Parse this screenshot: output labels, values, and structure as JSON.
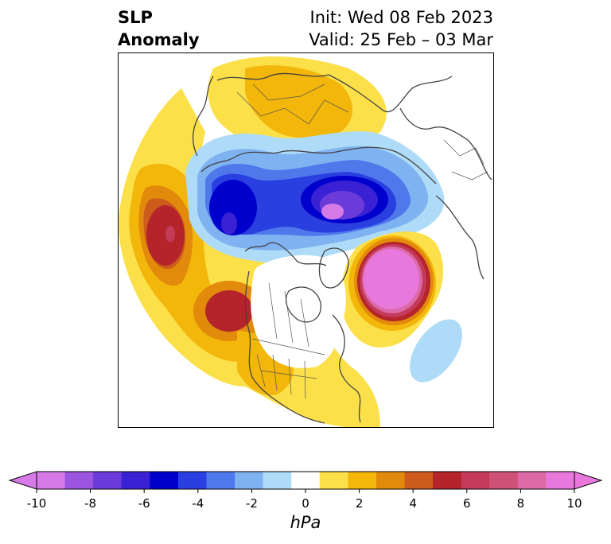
{
  "title": {
    "left_line1": "SLP",
    "left_line2": "Anomaly",
    "right_line1": "Init: Wed 08 Feb 2023",
    "right_line2": "Valid: 25 Feb – 03 Mar"
  },
  "colorbar": {
    "unit": "hPa",
    "tick_labels": [
      "-10",
      "-8",
      "-6",
      "-4",
      "-2",
      "0",
      "2",
      "4",
      "6",
      "8",
      "10"
    ],
    "colors": [
      "#d67ae8",
      "#9b55e0",
      "#6b3bd9",
      "#3a22d4",
      "#0000cd",
      "#2a3fe0",
      "#4f78eb",
      "#7fb2f0",
      "#aedcf8",
      "#ffffff",
      "#fce04a",
      "#f3b60a",
      "#e28a0c",
      "#cd5b1b",
      "#b4242a",
      "#c33a5a",
      "#cf5178",
      "#db6aa6",
      "#e878dc"
    ]
  },
  "map": {
    "colors": {
      "border": "#444444",
      "light_yellow": "#fce04a",
      "yellow": "#f3b60a",
      "orange": "#e28a0c",
      "dark_orange": "#cd5b1b",
      "red": "#b4242a",
      "pink": "#e878dc",
      "light_blue": "#aedcf8",
      "blue": "#7fb2f0",
      "mid_blue": "#4f78eb",
      "royal_blue": "#2a3fe0",
      "deep_blue": "#0000cd",
      "violet": "#6b3bd9",
      "purple": "#9b55e0"
    }
  }
}
